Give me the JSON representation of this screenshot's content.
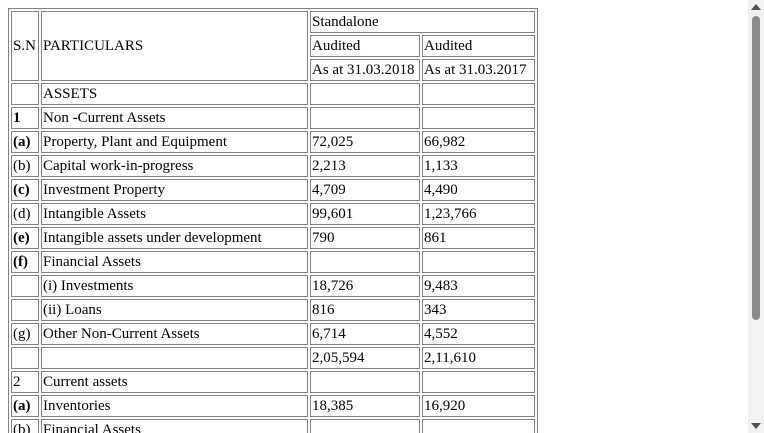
{
  "header": {
    "sn": "S.N",
    "particulars": "PARTICULARS",
    "standalone": "Standalone",
    "audited_1": "Audited",
    "audited_2": "Audited",
    "date_1": "As at 31.03.2018",
    "date_2": "As at 31.03.2017"
  },
  "rows": [
    {
      "sn": "",
      "label": "ASSETS",
      "v1": "",
      "v2": ""
    },
    {
      "sn": "1",
      "label": "Non -Current Assets",
      "v1": "",
      "v2": ""
    },
    {
      "sn": "(a)",
      "label": "Property, Plant and Equipment",
      "v1": "72,025",
      "v2": "66,982"
    },
    {
      "sn": "(b)",
      "label": "Capital work-in-progress",
      "v1": "2,213",
      "v2": "1,133"
    },
    {
      "sn": "(c)",
      "label": "Investment Property",
      "v1": "4,709",
      "v2": "4,490"
    },
    {
      "sn": "(d)",
      "label": "Intangible Assets",
      "v1": "99,601",
      "v2": "1,23,766"
    },
    {
      "sn": "(e)",
      "label": "Intangible assets under development",
      "v1": "790",
      "v2": "861"
    },
    {
      "sn": "(f)",
      "label": "Financial Assets",
      "v1": "",
      "v2": ""
    },
    {
      "sn": "",
      "label": "(i) Investments",
      "v1": "18,726",
      "v2": "9,483"
    },
    {
      "sn": "",
      "label": "(ii) Loans",
      "v1": "816",
      "v2": "343"
    },
    {
      "sn": "(g)",
      "label": "Other Non-Current Assets",
      "v1": "6,714",
      "v2": "4,552"
    },
    {
      "sn": "",
      "label": "",
      "v1": "2,05,594",
      "v2": "2,11,610"
    },
    {
      "sn": "2",
      "label": "Current assets",
      "v1": "",
      "v2": ""
    },
    {
      "sn": "(a)",
      "label": "Inventories",
      "v1": "18,385",
      "v2": "16,920"
    },
    {
      "sn": "(b)",
      "label": "Financial Assets",
      "v1": "",
      "v2": ""
    }
  ]
}
